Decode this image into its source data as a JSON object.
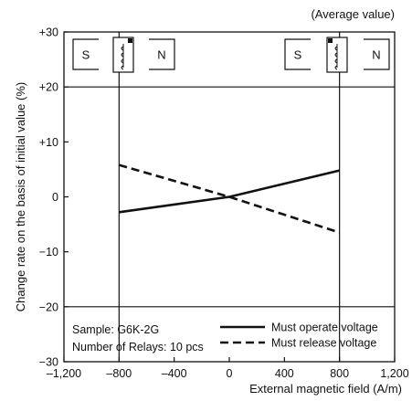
{
  "chart_data": {
    "type": "line",
    "title": "",
    "subtitle": "(Average value)",
    "xlabel": "External magnetic field (A/m)",
    "ylabel": "Change rate on the basis of initial value (%)",
    "xlim": [
      -1200,
      1200
    ],
    "ylim": [
      -30,
      30
    ],
    "xticks": [
      -1200,
      -800,
      -400,
      0,
      400,
      800,
      1200
    ],
    "xtick_labels": [
      "–1,200",
      "–800",
      "–400",
      "0",
      "400",
      "800",
      "1,200"
    ],
    "yticks": [
      -30,
      -20,
      -10,
      0,
      10,
      20,
      30
    ],
    "ytick_labels": [
      "−30",
      "−20",
      "−10",
      "0",
      "+10",
      "+20",
      "+30"
    ],
    "grid": {
      "x": [
        -800,
        800
      ],
      "y": [
        20,
        -20
      ]
    },
    "legend_position": "bottom-right",
    "series": [
      {
        "name": "Must operate voltage",
        "style": "solid",
        "color": "#111111",
        "x": [
          -800,
          0,
          800
        ],
        "y": [
          -2.8,
          0,
          4.8
        ]
      },
      {
        "name": "Must release voltage",
        "style": "dashed",
        "color": "#111111",
        "x": [
          -800,
          0,
          800
        ],
        "y": [
          5.8,
          0,
          -6.5
        ]
      }
    ],
    "annotations": [
      "Sample: G6K-2G",
      "Number of Relays: 10 pcs"
    ],
    "magnet_labels": {
      "left": [
        "S",
        "N"
      ],
      "right": [
        "S",
        "N"
      ]
    }
  }
}
